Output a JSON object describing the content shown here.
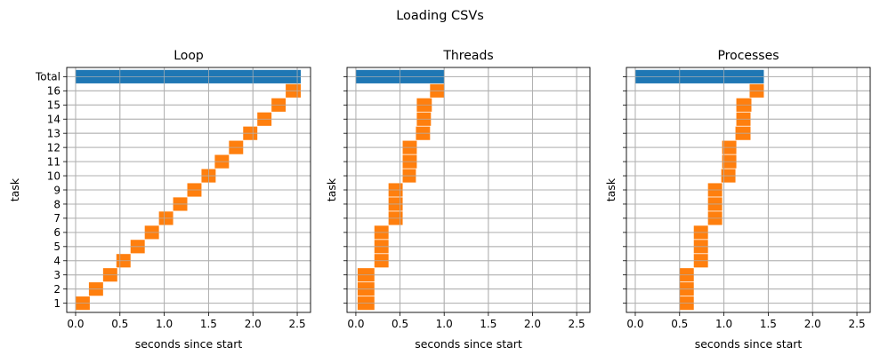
{
  "figure": {
    "suptitle": "Loading CSVs"
  },
  "colors": {
    "total": "#1f77b4",
    "task": "#ff7f0e",
    "grid": "#b0b0b0"
  },
  "chart_data": [
    {
      "type": "bar",
      "orientation": "horizontal-gantt",
      "title": "Loop",
      "xlabel": "seconds since start",
      "ylabel": "task",
      "xlim": [
        -0.1,
        2.65
      ],
      "xticks": [
        "0.0",
        "0.5",
        "1.0",
        "1.5",
        "2.0",
        "2.5"
      ],
      "categories": [
        "1",
        "2",
        "3",
        "4",
        "5",
        "6",
        "7",
        "8",
        "9",
        "10",
        "11",
        "12",
        "13",
        "14",
        "15",
        "16",
        "Total"
      ],
      "grid": true,
      "series": [
        {
          "starts": [
            0.0,
            0.15,
            0.31,
            0.46,
            0.62,
            0.78,
            0.94,
            1.1,
            1.26,
            1.42,
            1.57,
            1.73,
            1.89,
            2.05,
            2.21,
            2.37,
            0.0
          ],
          "ends": [
            0.16,
            0.31,
            0.47,
            0.62,
            0.78,
            0.94,
            1.1,
            1.26,
            1.42,
            1.58,
            1.73,
            1.89,
            2.05,
            2.21,
            2.37,
            2.54,
            2.54
          ]
        }
      ]
    },
    {
      "type": "bar",
      "orientation": "horizontal-gantt",
      "title": "Threads",
      "xlabel": "seconds since start",
      "ylabel": "task",
      "xlim": [
        -0.1,
        2.65
      ],
      "xticks": [
        "0.0",
        "0.5",
        "1.0",
        "1.5",
        "2.0",
        "2.5"
      ],
      "categories": [
        "1",
        "2",
        "3",
        "4",
        "5",
        "6",
        "7",
        "8",
        "9",
        "10",
        "11",
        "12",
        "13",
        "14",
        "15",
        "16",
        "Total"
      ],
      "grid": true,
      "series": [
        {
          "starts": [
            0.02,
            0.02,
            0.02,
            0.21,
            0.21,
            0.21,
            0.37,
            0.37,
            0.37,
            0.53,
            0.53,
            0.53,
            0.68,
            0.69,
            0.69,
            0.84,
            0.0
          ],
          "ends": [
            0.21,
            0.21,
            0.21,
            0.37,
            0.37,
            0.37,
            0.53,
            0.53,
            0.53,
            0.68,
            0.69,
            0.69,
            0.84,
            0.85,
            0.86,
            1.0,
            1.0
          ]
        }
      ]
    },
    {
      "type": "bar",
      "orientation": "horizontal-gantt",
      "title": "Processes",
      "xlabel": "seconds since start",
      "ylabel": "task",
      "xlim": [
        -0.1,
        2.65
      ],
      "xticks": [
        "0.0",
        "0.5",
        "1.0",
        "1.5",
        "2.0",
        "2.5"
      ],
      "categories": [
        "1",
        "2",
        "3",
        "4",
        "5",
        "6",
        "7",
        "8",
        "9",
        "10",
        "11",
        "12",
        "13",
        "14",
        "15",
        "16",
        "Total"
      ],
      "grid": true,
      "series": [
        {
          "starts": [
            0.5,
            0.5,
            0.5,
            0.66,
            0.66,
            0.66,
            0.82,
            0.82,
            0.82,
            0.97,
            0.98,
            0.98,
            1.13,
            1.14,
            1.14,
            1.29,
            0.0
          ],
          "ends": [
            0.66,
            0.66,
            0.66,
            0.82,
            0.82,
            0.82,
            0.98,
            0.98,
            0.98,
            1.13,
            1.14,
            1.14,
            1.3,
            1.3,
            1.31,
            1.45,
            1.45
          ]
        }
      ]
    }
  ]
}
